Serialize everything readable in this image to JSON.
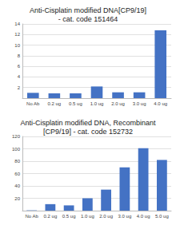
{
  "chart_data": [
    {
      "type": "bar",
      "title": "Anti-Cisplatin modified DNA[CP9/19]\n- cat. code 151464",
      "categories": [
        "No Ab",
        "0.2 ug",
        "0.5 ug",
        "1.0 ug",
        "2.0 ug",
        "3.0 ug",
        "4.0 ug"
      ],
      "values": [
        1.0,
        0.9,
        0.9,
        2.2,
        1.1,
        1.1,
        12.8
      ],
      "color": "#4472C4",
      "ylim": [
        0,
        14
      ],
      "yticks": [
        2,
        4,
        6,
        8,
        10,
        12,
        14
      ],
      "grid": true
    },
    {
      "type": "bar",
      "title": "Anti-Cisplatin modified DNA, Recombinant\n[CP9/19] - cat. code 152732",
      "categories": [
        "No Ab",
        "0.2 ug",
        "0.5 ug",
        "1.0 ug",
        "2.0 ug",
        "3.0 ug",
        "4.0 ug",
        "5.0 ug"
      ],
      "values": [
        0.5,
        10.5,
        8.5,
        20.0,
        34.0,
        70.0,
        101.0,
        82.0
      ],
      "color": "#4472C4",
      "ylim": [
        0,
        120
      ],
      "yticks": [
        20,
        40,
        60,
        80,
        100,
        120
      ],
      "grid": true
    }
  ]
}
